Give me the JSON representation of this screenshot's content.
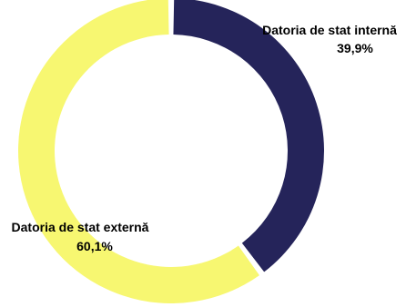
{
  "chart_data": {
    "type": "pie",
    "style": "donut",
    "slices": [
      {
        "label": "Datoria de stat internă",
        "value": 39.9,
        "value_label": "39,9%",
        "color": "#25245a"
      },
      {
        "label": "Datoria de stat externă",
        "value": 60.1,
        "value_label": "60,1%",
        "color": "#f7f771"
      }
    ],
    "legend": "none"
  }
}
